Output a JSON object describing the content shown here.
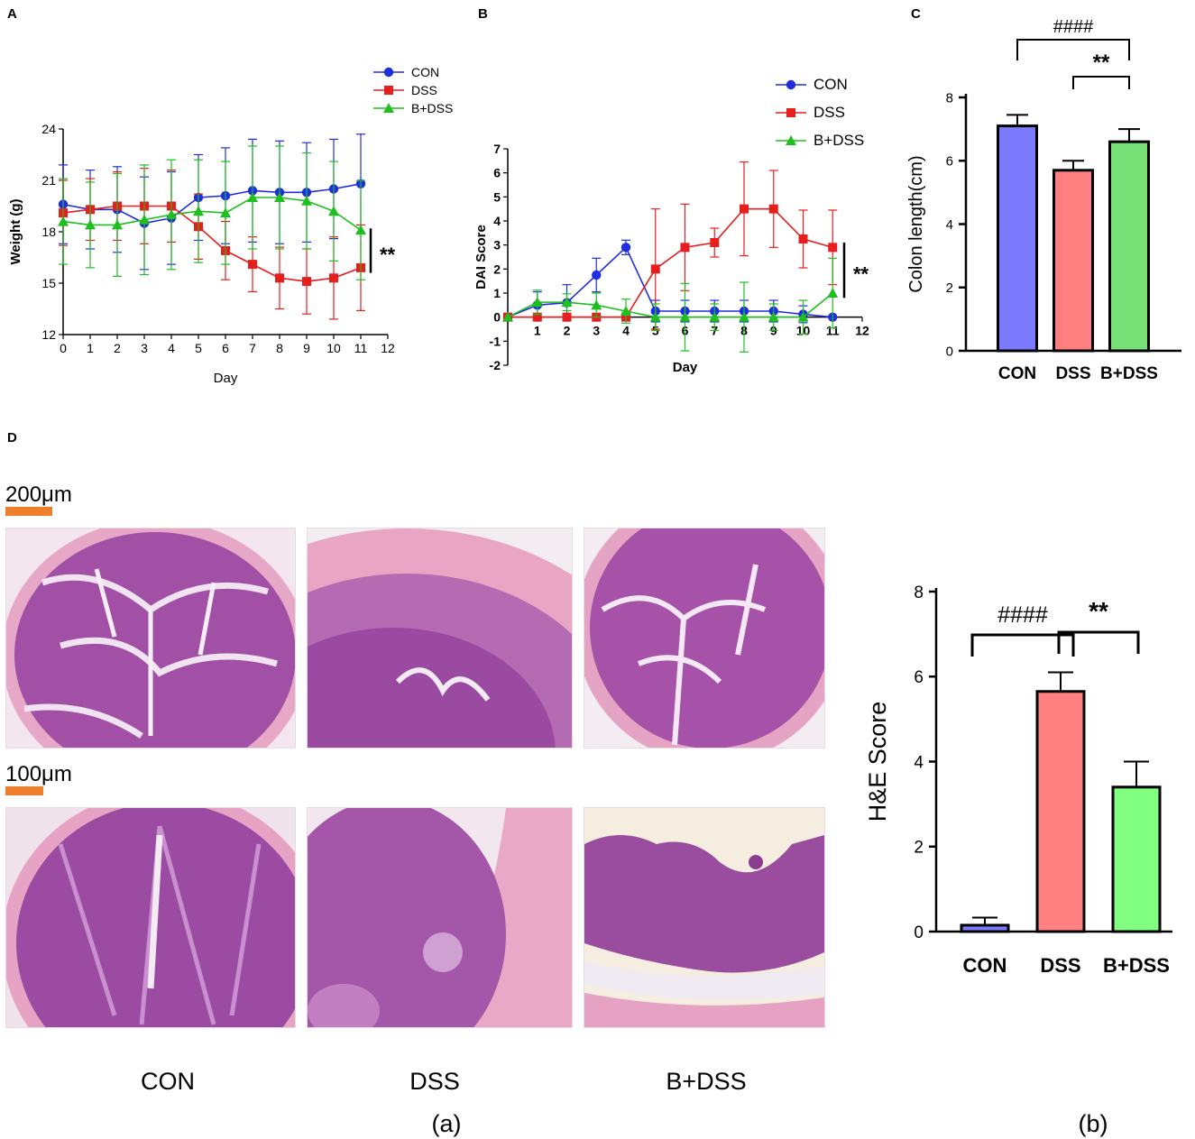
{
  "figure": {
    "panel_labels": {
      "A": "A",
      "B": "B",
      "C": "C",
      "D": "D"
    },
    "group_names": [
      "CON",
      "DSS",
      "B+DSS"
    ],
    "colors": {
      "CON": "#1f2ee0",
      "DSS": "#e61e1e",
      "BDSS": "#1fbf1f",
      "bar_CON": "#7b7bff",
      "bar_DSS": "#ff8080",
      "bar_BDSS": "#77e077",
      "bar_BDSS_he": "#80ff80",
      "scale_bar": "#ee7d2c"
    }
  },
  "histology": {
    "scale_bar_top": "200μm",
    "scale_bar_bottom": "100μm",
    "column_labels": [
      "CON",
      "DSS",
      "B+DSS"
    ],
    "caption": "(a)"
  },
  "chart_data": [
    {
      "id": "A",
      "type": "line",
      "title": "",
      "xlabel": "Day",
      "ylabel": "Weight (g)",
      "xlim": [
        0,
        12
      ],
      "ylim": [
        12,
        24
      ],
      "xticks": [
        "0",
        "1",
        "2",
        "3",
        "4",
        "5",
        "6",
        "7",
        "8",
        "9",
        "10",
        "11",
        "12"
      ],
      "yticks": [
        "12",
        "15",
        "18",
        "21",
        "24"
      ],
      "x": [
        0,
        1,
        2,
        3,
        4,
        5,
        6,
        7,
        8,
        9,
        10,
        11
      ],
      "series": [
        {
          "name": "CON",
          "values": [
            19.6,
            19.3,
            19.3,
            18.5,
            18.8,
            20.0,
            20.1,
            20.4,
            20.3,
            20.3,
            20.5,
            20.8
          ],
          "errors": [
            2.3,
            2.3,
            2.5,
            2.7,
            2.7,
            2.5,
            2.8,
            3.0,
            3.0,
            2.9,
            2.9,
            2.9
          ]
        },
        {
          "name": "DSS",
          "values": [
            19.1,
            19.3,
            19.5,
            19.5,
            19.5,
            18.3,
            16.9,
            16.1,
            15.3,
            15.1,
            15.3,
            15.9
          ],
          "errors": [
            1.9,
            1.8,
            2.0,
            2.2,
            2.1,
            1.9,
            1.7,
            1.6,
            1.8,
            1.9,
            2.4,
            2.5
          ]
        },
        {
          "name": "B+DSS",
          "values": [
            18.6,
            18.4,
            18.4,
            18.7,
            19.0,
            19.2,
            19.1,
            20.0,
            20.0,
            19.8,
            19.2,
            18.1
          ],
          "errors": [
            2.5,
            2.5,
            3.0,
            3.2,
            3.2,
            3.0,
            3.0,
            3.0,
            3.0,
            2.8,
            2.9,
            2.9
          ]
        }
      ],
      "annotation": "**"
    },
    {
      "id": "B",
      "type": "line",
      "title": "",
      "xlabel": "Day",
      "ylabel": "DAI Score",
      "xlim": [
        0,
        12
      ],
      "ylim": [
        -2,
        7
      ],
      "xticks": [
        "1",
        "2",
        "3",
        "4",
        "5",
        "6",
        "7",
        "8",
        "9",
        "10",
        "11",
        "12"
      ],
      "yticks": [
        "-2",
        "-1",
        "0",
        "1",
        "2",
        "3",
        "4",
        "5",
        "6",
        "7"
      ],
      "x": [
        0,
        1,
        2,
        3,
        4,
        5,
        6,
        7,
        8,
        9,
        10,
        11
      ],
      "series": [
        {
          "name": "CON",
          "values": [
            0,
            0.5,
            0.6,
            1.75,
            2.9,
            0.25,
            0.25,
            0.25,
            0.25,
            0.25,
            0.12,
            0
          ],
          "errors": [
            0,
            0.55,
            0.75,
            0.7,
            0.3,
            0.45,
            0.45,
            0.45,
            0.45,
            0.45,
            0.35,
            0
          ]
        },
        {
          "name": "DSS",
          "values": [
            0,
            0,
            0,
            0,
            0,
            2.0,
            2.9,
            3.1,
            4.5,
            4.5,
            3.25,
            2.9
          ],
          "errors": [
            0,
            0,
            0,
            0,
            0,
            2.5,
            1.8,
            0.6,
            1.95,
            1.6,
            1.2,
            1.55
          ]
        },
        {
          "name": "B+DSS",
          "values": [
            0,
            0.62,
            0.62,
            0.5,
            0.25,
            0,
            0,
            0,
            0,
            0,
            0,
            1.0
          ],
          "errors": [
            0,
            0.5,
            0.35,
            0.5,
            0.5,
            0.55,
            1.4,
            0.55,
            1.45,
            0.55,
            0.7,
            1.45
          ]
        }
      ],
      "annotation": "**"
    },
    {
      "id": "C",
      "type": "bar",
      "title": "",
      "xlabel": "",
      "ylabel": "Colon length(cm)",
      "ylim": [
        0,
        8
      ],
      "yticks": [
        "0",
        "2",
        "4",
        "6",
        "8"
      ],
      "categories": [
        "CON",
        "DSS",
        "B+DSS"
      ],
      "values": [
        7.1,
        5.7,
        6.6
      ],
      "errors": [
        0.35,
        0.3,
        0.4
      ],
      "annotations": [
        {
          "pair": [
            "CON",
            "B+DSS"
          ],
          "label": "####"
        },
        {
          "pair": [
            "DSS",
            "B+DSS"
          ],
          "label": "**"
        }
      ]
    },
    {
      "id": "D(b)",
      "type": "bar",
      "title": "",
      "xlabel": "",
      "ylabel": "H&E Score",
      "ylim": [
        0,
        8
      ],
      "yticks": [
        "0",
        "2",
        "4",
        "6",
        "8"
      ],
      "categories": [
        "CON",
        "DSS",
        "B+DSS"
      ],
      "values": [
        0.15,
        5.65,
        3.4
      ],
      "errors": [
        0.18,
        0.45,
        0.6
      ],
      "annotations": [
        {
          "pair": [
            "CON",
            "DSS"
          ],
          "label": "####"
        },
        {
          "pair": [
            "DSS",
            "B+DSS"
          ],
          "label": "**"
        }
      ],
      "caption": "(b)"
    }
  ]
}
